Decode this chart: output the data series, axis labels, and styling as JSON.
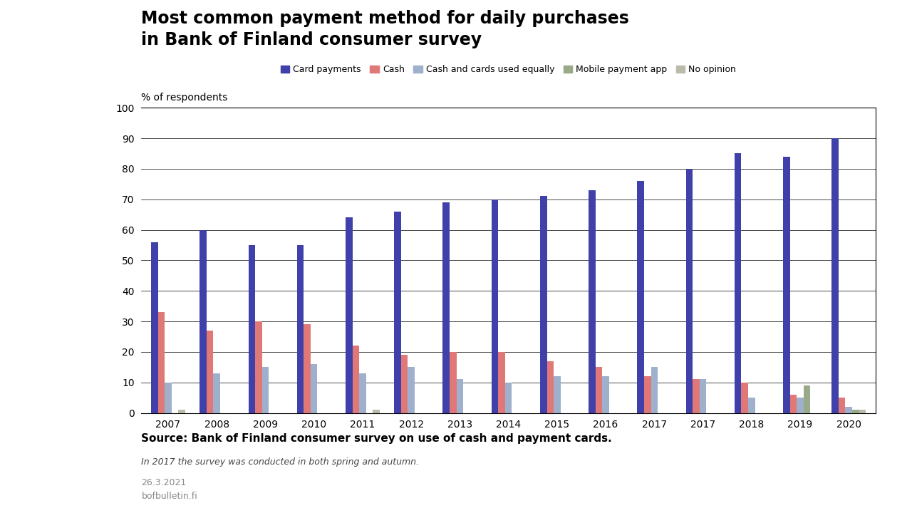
{
  "title": "Most common payment method for daily purchases\nin Bank of Finland consumer survey",
  "ylabel": "% of respondents",
  "ylim": [
    0,
    100
  ],
  "yticks": [
    0,
    10,
    20,
    30,
    40,
    50,
    60,
    70,
    80,
    90,
    100
  ],
  "categories": [
    "2007",
    "2008",
    "2009",
    "2010",
    "2011",
    "2012",
    "2013",
    "2014",
    "2015",
    "2016",
    "2017",
    "2017",
    "2018",
    "2019",
    "2020"
  ],
  "series": {
    "Card payments": [
      56,
      60,
      55,
      55,
      64,
      66,
      69,
      70,
      71,
      73,
      76,
      80,
      85,
      84,
      90
    ],
    "Cash": [
      33,
      27,
      30,
      29,
      22,
      19,
      20,
      20,
      17,
      15,
      12,
      11,
      10,
      6,
      5
    ],
    "Cash and cards used equally": [
      10,
      13,
      15,
      16,
      13,
      15,
      11,
      10,
      12,
      12,
      15,
      11,
      5,
      5,
      2
    ],
    "Mobile payment app": [
      0,
      0,
      0,
      0,
      0,
      0,
      0,
      0,
      0,
      0,
      0,
      0,
      0,
      9,
      1
    ],
    "No opinion": [
      1,
      0,
      0,
      0,
      1,
      0,
      0,
      0,
      0,
      0,
      0,
      0,
      0,
      0,
      1
    ]
  },
  "colors": {
    "Card payments": "#4040aa",
    "Cash": "#e07878",
    "Cash and cards used equally": "#9fb0cc",
    "Mobile payment app": "#99aa88",
    "No opinion": "#bbbbaa"
  },
  "legend_order": [
    "Card payments",
    "Cash",
    "Cash and cards used equally",
    "Mobile payment app",
    "No opinion"
  ],
  "source_text": "Source: Bank of Finland consumer survey on use of cash and payment cards.",
  "note_text": "In 2017 the survey was conducted in both spring and autumn.",
  "date_text": "26.3.2021",
  "website_text": "bofbulletin.fi",
  "bg_color": "#ffffff",
  "title_fontsize": 17,
  "legend_fontsize": 9,
  "axis_fontsize": 10,
  "tick_fontsize": 10,
  "footer_source_fontsize": 11,
  "footer_note_fontsize": 9
}
